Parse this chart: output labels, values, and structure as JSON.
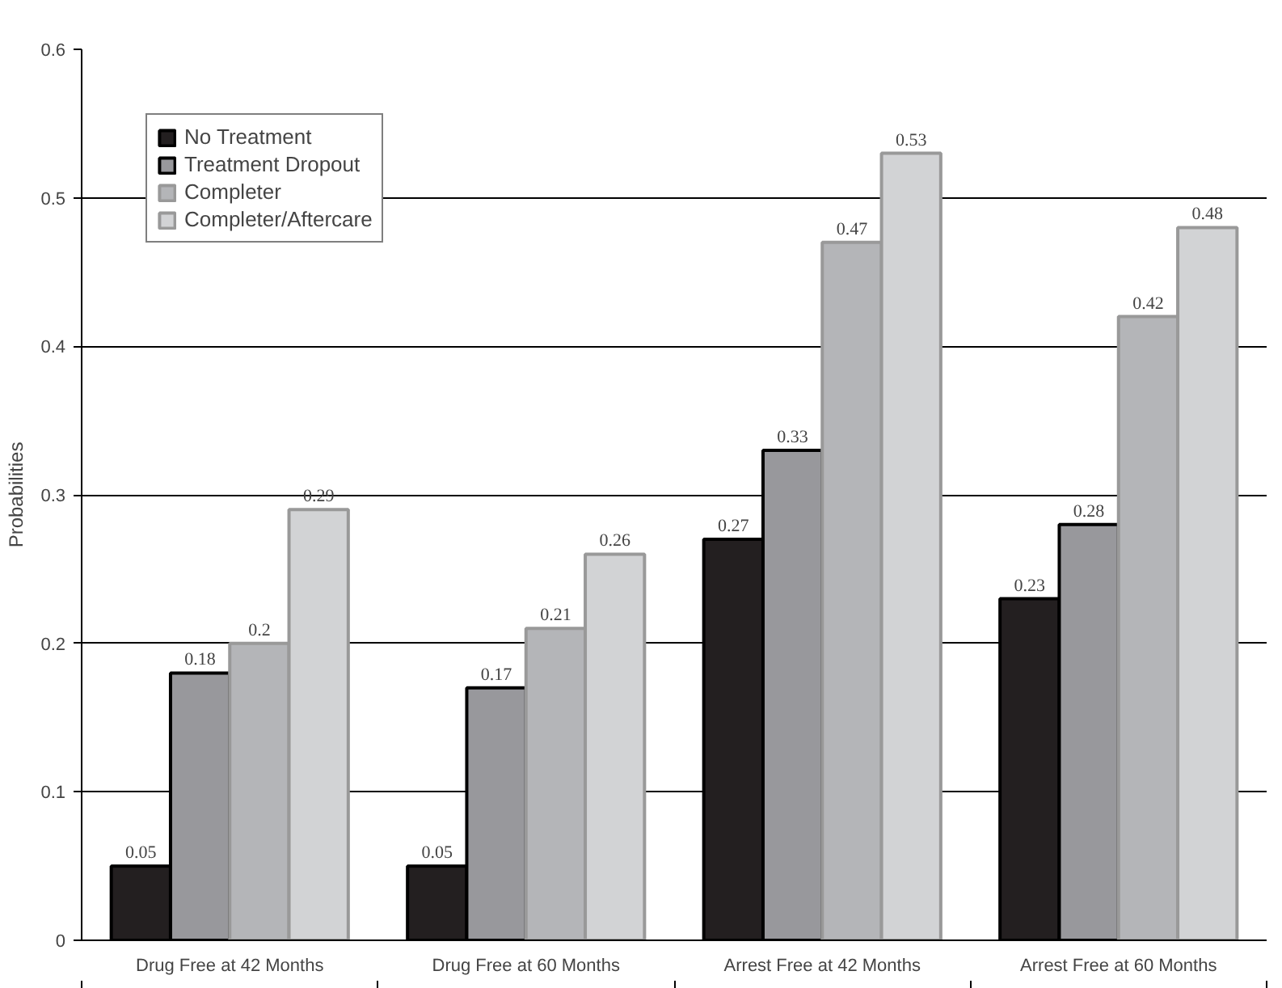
{
  "chart_data": {
    "type": "bar",
    "ylabel": "Probabilities",
    "categories": [
      "Drug Free at 42 Months",
      "Drug Free at 60 Months",
      "Arrest Free at 42 Months",
      "Arrest Free at 60 Months"
    ],
    "series": [
      {
        "name": "No Treatment",
        "color": "#231f20",
        "values": [
          0.05,
          0.05,
          0.27,
          0.23
        ]
      },
      {
        "name": "Treatment Dropout",
        "color": "#98989c",
        "values": [
          0.18,
          0.17,
          0.33,
          0.28
        ]
      },
      {
        "name": "Completer",
        "color": "#b4b5b8",
        "values": [
          0.2,
          0.21,
          0.47,
          0.42
        ]
      },
      {
        "name": "Completer/Aftercare",
        "color": "#d2d3d5",
        "values": [
          0.29,
          0.26,
          0.53,
          0.48
        ]
      }
    ],
    "ylim": [
      0,
      0.6
    ],
    "yticks": [
      0,
      0.1,
      0.2,
      0.3,
      0.4,
      0.5,
      0.6
    ],
    "grid": "y",
    "legend": "top left",
    "data_labels": true
  }
}
